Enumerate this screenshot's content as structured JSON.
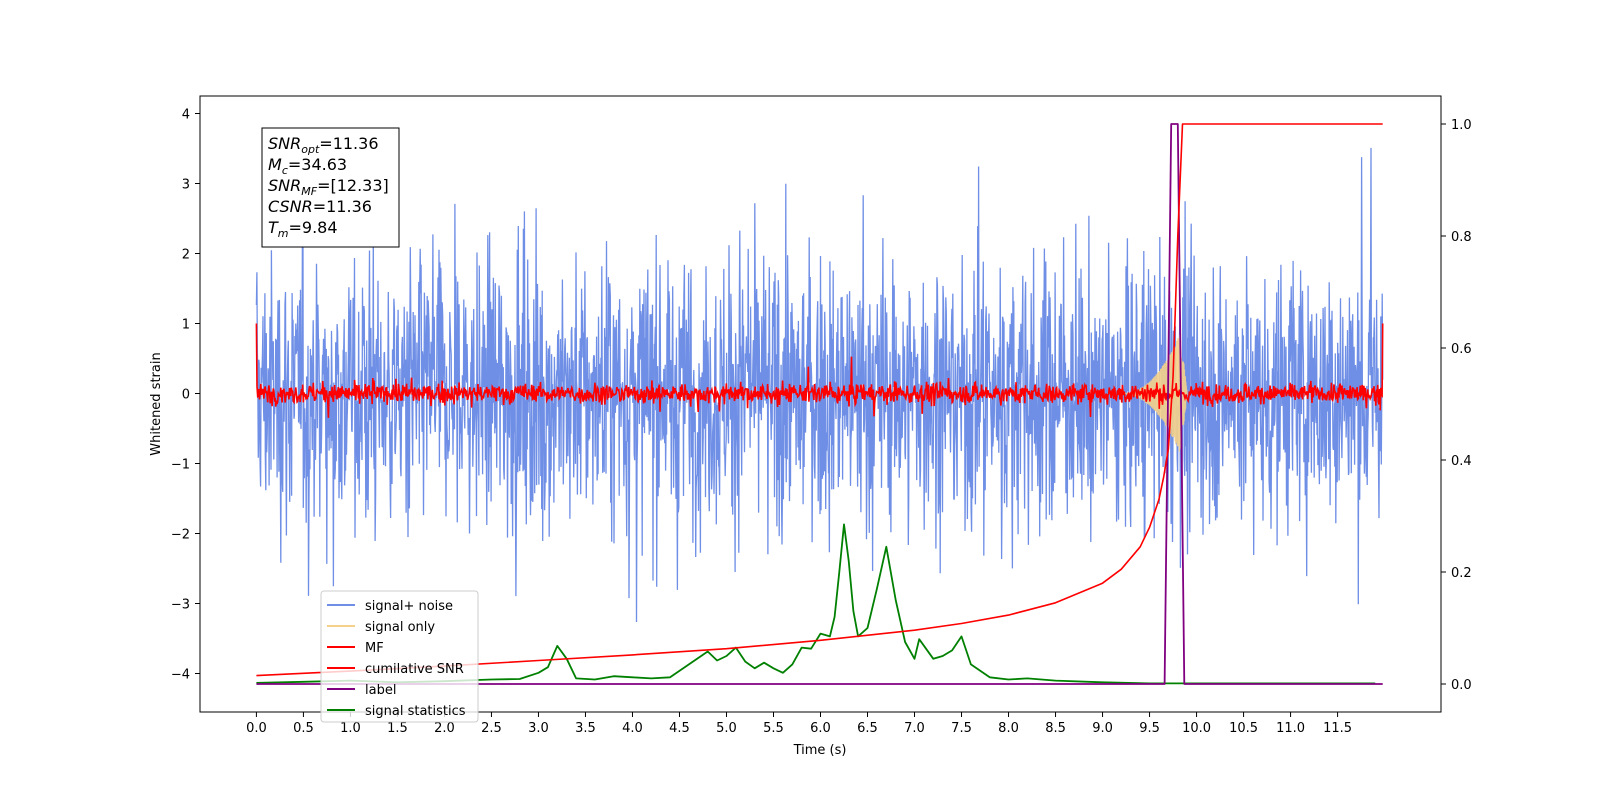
{
  "chart_data": {
    "type": "line",
    "xlabel": "Time (s)",
    "ylabel": "Whitened strain",
    "xlim": [
      -0.6,
      12.6
    ],
    "ylim": [
      -4.55,
      4.25
    ],
    "ylim_right": [
      -0.05,
      1.05
    ],
    "x_ticks": [
      0.0,
      0.5,
      1.0,
      1.5,
      2.0,
      2.5,
      3.0,
      3.5,
      4.0,
      4.5,
      5.0,
      5.5,
      6.0,
      6.5,
      7.0,
      7.5,
      8.0,
      8.5,
      9.0,
      9.5,
      10.0,
      10.5,
      11.0,
      11.5
    ],
    "x_tick_labels": [
      "0.0",
      "0.5",
      "1.0",
      "1.5",
      "2.0",
      "2.5",
      "3.0",
      "3.5",
      "4.0",
      "4.5",
      "5.0",
      "5.5",
      "6.0",
      "6.5",
      "7.0",
      "7.5",
      "8.0",
      "8.5",
      "9.0",
      "9.5",
      "10.0",
      "10.5",
      "11.0",
      "11.5"
    ],
    "y_ticks": [
      4,
      3,
      2,
      1,
      0,
      -1,
      -2,
      -3,
      -4
    ],
    "y_tick_labels": [
      "4",
      "3",
      "2",
      "1",
      "0",
      "−1",
      "−2",
      "−3",
      "−4"
    ],
    "y2_ticks": [
      1.0,
      0.8,
      0.6,
      0.4,
      0.2,
      0.0
    ],
    "y2_tick_labels": [
      "1.0",
      "0.8",
      "0.6",
      "0.4",
      "0.2",
      "0.0"
    ],
    "grid": false,
    "legend_position": "lower-left",
    "legend": [
      {
        "label": "signal+ noise",
        "color": "#6f8fe6"
      },
      {
        "label": "signal only",
        "color": "#f5d08a"
      },
      {
        "label": "MF",
        "color": "#ff0000"
      },
      {
        "label": "cumilative SNR",
        "color": "#ff0000"
      },
      {
        "label": "label",
        "color": "#800080"
      },
      {
        "label": "signal statistics",
        "color": "#008000"
      }
    ],
    "annotation": [
      {
        "base": "SNR",
        "sub": "opt",
        "value": "=11.36"
      },
      {
        "base": "M",
        "sub": "c",
        "value": "=34.63"
      },
      {
        "base": "SNR",
        "sub": "MF",
        "value": "=[12.33]"
      },
      {
        "base": "CSNR",
        "sub": "",
        "value": "=11.36"
      },
      {
        "base": "T",
        "sub": "m",
        "value": "=9.84"
      }
    ],
    "series": [
      {
        "name": "signal+ noise",
        "axis": "left",
        "color": "#6f8fe6",
        "description": "whitened noisy strain, amplitude mostly within ±2.5 with spikes to about ±3.5",
        "x_range": [
          0.0,
          11.98
        ],
        "envelope": {
          "typical": 2.0,
          "peak_max": 3.55,
          "peak_min": -3.7
        }
      },
      {
        "name": "signal only",
        "axis": "left",
        "color": "#f5d08a",
        "description": "chirp waveform growing toward merger near t≈9.8 s",
        "x_range": [
          9.2,
          9.9
        ],
        "peak_amplitude": 1.1
      },
      {
        "name": "MF",
        "axis": "left",
        "color": "#ff0000",
        "description": "matched filter output, noise ±0.2 with endpoints at 1.0",
        "x_range": [
          0.0,
          11.98
        ],
        "noise_amplitude": 0.2,
        "endpoint_value": 1.0
      },
      {
        "name": "cumilative SNR",
        "axis": "right",
        "color": "#ff0000",
        "x": [
          0.0,
          1.0,
          2.0,
          3.0,
          4.0,
          5.0,
          6.0,
          7.0,
          7.5,
          8.0,
          8.5,
          9.0,
          9.2,
          9.4,
          9.5,
          9.6,
          9.65,
          9.7,
          9.75,
          9.8,
          9.85,
          9.9,
          10.0,
          11.0,
          11.98
        ],
        "y": [
          0.015,
          0.023,
          0.032,
          0.042,
          0.052,
          0.063,
          0.078,
          0.096,
          0.108,
          0.123,
          0.145,
          0.18,
          0.205,
          0.245,
          0.28,
          0.33,
          0.37,
          0.42,
          0.55,
          0.8,
          1.0,
          1.0,
          1.0,
          1.0,
          1.0
        ]
      },
      {
        "name": "label",
        "axis": "right",
        "color": "#800080",
        "x": [
          0.0,
          9.66,
          9.73,
          9.8,
          9.87,
          9.92,
          11.98
        ],
        "y": [
          0.0,
          0.0,
          1.0,
          1.0,
          0.0,
          0.0,
          0.0
        ]
      },
      {
        "name": "signal statistics",
        "axis": "right",
        "color": "#008000",
        "x": [
          0.0,
          0.5,
          1.0,
          1.5,
          2.0,
          2.5,
          2.8,
          3.0,
          3.1,
          3.2,
          3.3,
          3.4,
          3.6,
          3.8,
          4.0,
          4.2,
          4.4,
          4.6,
          4.8,
          4.9,
          5.0,
          5.1,
          5.2,
          5.3,
          5.4,
          5.5,
          5.6,
          5.7,
          5.8,
          5.9,
          6.0,
          6.1,
          6.15,
          6.2,
          6.25,
          6.3,
          6.35,
          6.4,
          6.5,
          6.6,
          6.7,
          6.8,
          6.9,
          7.0,
          7.05,
          7.2,
          7.3,
          7.4,
          7.5,
          7.6,
          7.8,
          8.0,
          8.2,
          8.5,
          9.0,
          9.5,
          10.0,
          11.0,
          11.9
        ],
        "y": [
          0.002,
          0.004,
          0.006,
          0.003,
          0.005,
          0.008,
          0.009,
          0.02,
          0.03,
          0.068,
          0.045,
          0.01,
          0.008,
          0.014,
          0.012,
          0.01,
          0.012,
          0.035,
          0.058,
          0.042,
          0.05,
          0.065,
          0.04,
          0.028,
          0.038,
          0.028,
          0.02,
          0.035,
          0.065,
          0.063,
          0.09,
          0.085,
          0.12,
          0.2,
          0.285,
          0.22,
          0.13,
          0.085,
          0.1,
          0.17,
          0.245,
          0.15,
          0.075,
          0.045,
          0.08,
          0.045,
          0.05,
          0.06,
          0.085,
          0.035,
          0.012,
          0.008,
          0.01,
          0.006,
          0.003,
          0.001,
          0.001,
          0.001,
          0.001
        ]
      }
    ]
  }
}
